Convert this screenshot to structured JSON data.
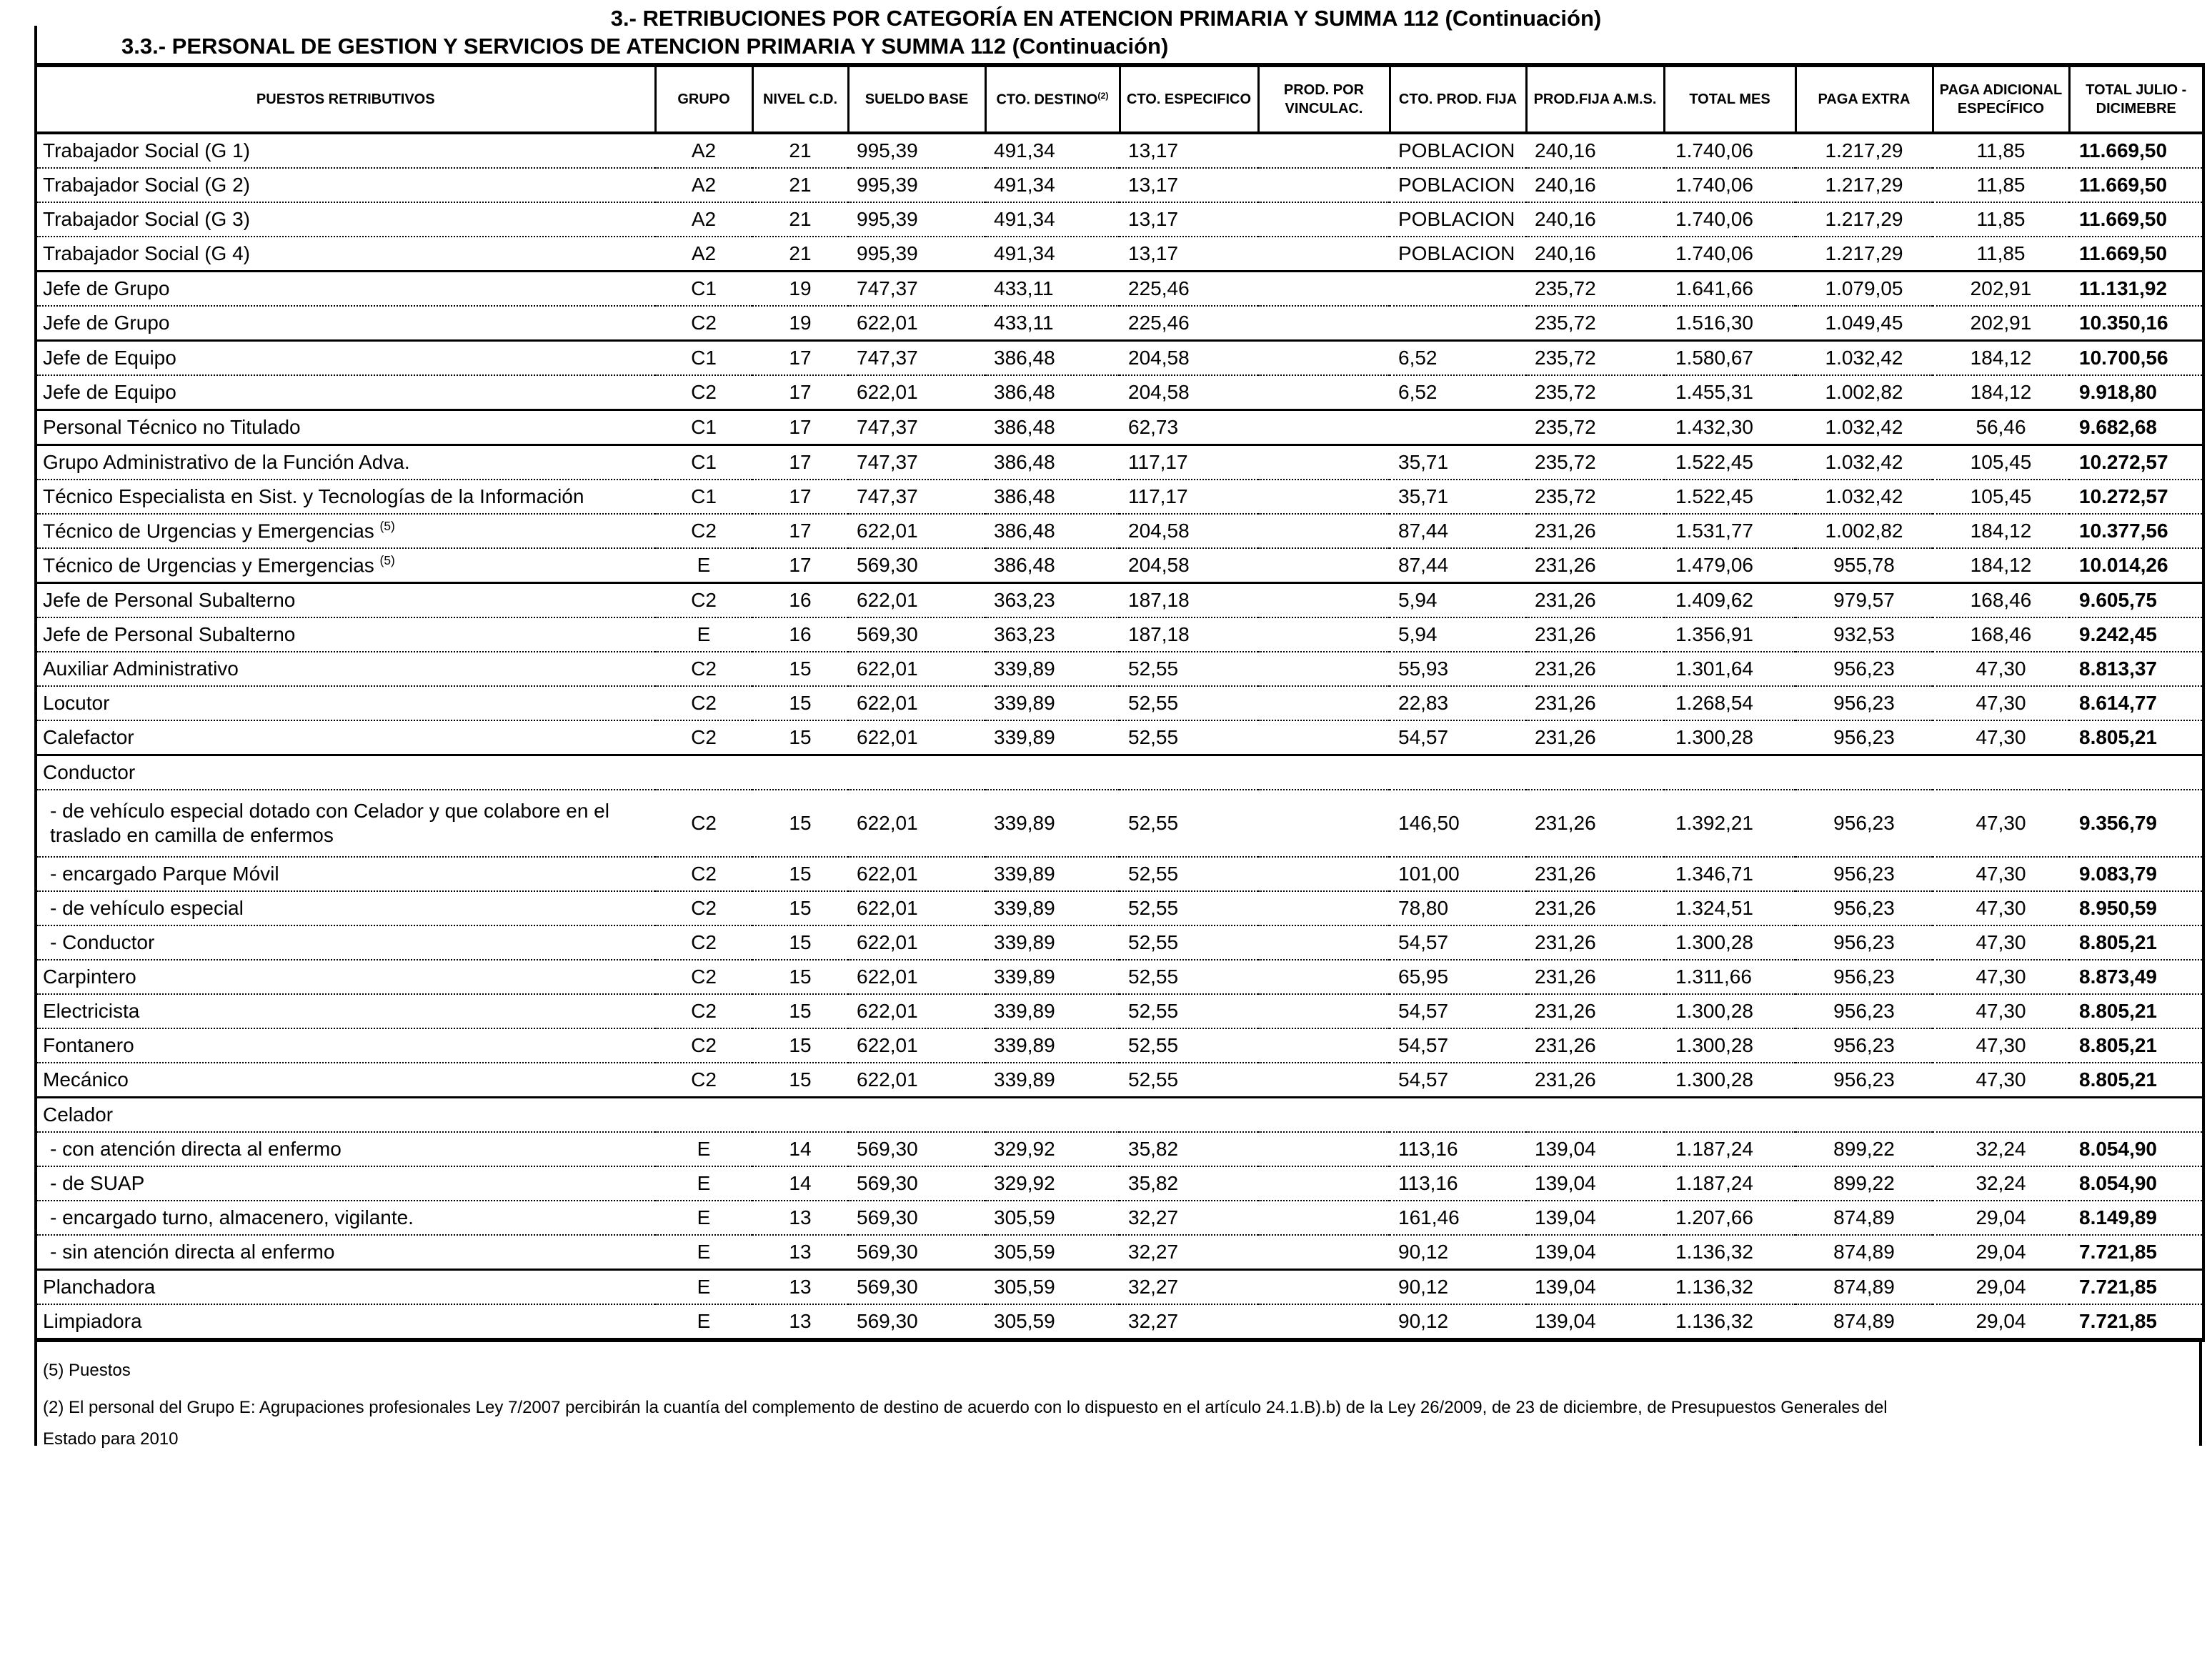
{
  "document": {
    "title": "3.-  RETRIBUCIONES POR CATEGORÍA EN ATENCION PRIMARIA Y SUMMA 112 (Continuación)",
    "subtitle": "3.3.- PERSONAL DE GESTION Y SERVICIOS DE ATENCION PRIMARIA Y SUMMA 112 (Continuación)"
  },
  "table": {
    "columns": [
      {
        "label": "PUESTOS RETRIBUTIVOS"
      },
      {
        "label": "GRUPO"
      },
      {
        "label": "NIVEL C.D."
      },
      {
        "label": "SUELDO BASE"
      },
      {
        "label": "CTO. DESTINO",
        "sup": "(2)"
      },
      {
        "label": "CTO. ESPECIFICO"
      },
      {
        "label": "PROD. POR VINCULAC."
      },
      {
        "label": "CTO. PROD. FIJA"
      },
      {
        "label": "PROD.FIJA A.M.S."
      },
      {
        "label": "TOTAL MES"
      },
      {
        "label": "PAGA  EXTRA"
      },
      {
        "label": "PAGA ADICIONAL ESPECÍFICO"
      },
      {
        "label": "TOTAL JULIO - DICIMEBRE"
      }
    ],
    "rows": [
      {
        "label": "Trabajador Social (G 1)",
        "sep": "none",
        "cells": {
          "grupo": "A2",
          "nivel": "21",
          "sueldo": "995,39",
          "destino": "491,34",
          "especifico": "13,17",
          "ctoprod": "POBLACION",
          "prodfija": "240,16",
          "totalmes": "1.740,06",
          "pagaextra": "1.217,29",
          "pagaadic": "11,85",
          "totaljulio": "11.669,50"
        }
      },
      {
        "label": "Trabajador Social  (G 2)",
        "sep": "dotted",
        "cells": {
          "grupo": "A2",
          "nivel": "21",
          "sueldo": "995,39",
          "destino": "491,34",
          "especifico": "13,17",
          "ctoprod": "POBLACION",
          "prodfija": "240,16",
          "totalmes": "1.740,06",
          "pagaextra": "1.217,29",
          "pagaadic": "11,85",
          "totaljulio": "11.669,50"
        }
      },
      {
        "label": "Trabajador Social  (G 3)",
        "sep": "dotted",
        "cells": {
          "grupo": "A2",
          "nivel": "21",
          "sueldo": "995,39",
          "destino": "491,34",
          "especifico": "13,17",
          "ctoprod": "POBLACION",
          "prodfija": "240,16",
          "totalmes": "1.740,06",
          "pagaextra": "1.217,29",
          "pagaadic": "11,85",
          "totaljulio": "11.669,50"
        }
      },
      {
        "label": "Trabajador Social  (G 4)",
        "sep": "dotted",
        "cells": {
          "grupo": "A2",
          "nivel": "21",
          "sueldo": "995,39",
          "destino": "491,34",
          "especifico": "13,17",
          "ctoprod": "POBLACION",
          "prodfija": "240,16",
          "totalmes": "1.740,06",
          "pagaextra": "1.217,29",
          "pagaadic": "11,85",
          "totaljulio": "11.669,50"
        }
      },
      {
        "label": "Jefe de Grupo",
        "sep": "solid",
        "cells": {
          "grupo": "C1",
          "nivel": "19",
          "sueldo": "747,37",
          "destino": "433,11",
          "especifico": "225,46",
          "prodfija": "235,72",
          "totalmes": "1.641,66",
          "pagaextra": "1.079,05",
          "pagaadic": "202,91",
          "totaljulio": "11.131,92"
        }
      },
      {
        "label": "Jefe de Grupo",
        "sep": "dotted",
        "cells": {
          "grupo": "C2",
          "nivel": "19",
          "sueldo": "622,01",
          "destino": "433,11",
          "especifico": "225,46",
          "prodfija": "235,72",
          "totalmes": "1.516,30",
          "pagaextra": "1.049,45",
          "pagaadic": "202,91",
          "totaljulio": "10.350,16"
        }
      },
      {
        "label": "Jefe de Equipo",
        "sep": "solid",
        "cells": {
          "grupo": "C1",
          "nivel": "17",
          "sueldo": "747,37",
          "destino": "386,48",
          "especifico": "204,58",
          "ctoprod": "6,52",
          "prodfija": "235,72",
          "totalmes": "1.580,67",
          "pagaextra": "1.032,42",
          "pagaadic": "184,12",
          "totaljulio": "10.700,56"
        }
      },
      {
        "label": "Jefe de Equipo",
        "sep": "dotted",
        "cells": {
          "grupo": "C2",
          "nivel": "17",
          "sueldo": "622,01",
          "destino": "386,48",
          "especifico": "204,58",
          "ctoprod": "6,52",
          "prodfija": "235,72",
          "totalmes": "1.455,31",
          "pagaextra": "1.002,82",
          "pagaadic": "184,12",
          "totaljulio": "9.918,80"
        }
      },
      {
        "label": "Personal Técnico no Titulado",
        "sep": "solid",
        "cells": {
          "grupo": "C1",
          "nivel": "17",
          "sueldo": "747,37",
          "destino": "386,48",
          "especifico": "62,73",
          "prodfija": "235,72",
          "totalmes": "1.432,30",
          "pagaextra": "1.032,42",
          "pagaadic": "56,46",
          "totaljulio": "9.682,68"
        }
      },
      {
        "label": "Grupo Administrativo de la Función Adva.",
        "sep": "solid",
        "cells": {
          "grupo": "C1",
          "nivel": "17",
          "sueldo": "747,37",
          "destino": "386,48",
          "especifico": "117,17",
          "ctoprod": "35,71",
          "prodfija": "235,72",
          "totalmes": "1.522,45",
          "pagaextra": "1.032,42",
          "pagaadic": "105,45",
          "totaljulio": "10.272,57"
        }
      },
      {
        "label": "Técnico Especialista en Sist. y Tecnologías de la Información",
        "sep": "dotted",
        "cells": {
          "grupo": "C1",
          "nivel": "17",
          "sueldo": "747,37",
          "destino": "386,48",
          "especifico": "117,17",
          "ctoprod": "35,71",
          "prodfija": "235,72",
          "totalmes": "1.522,45",
          "pagaextra": "1.032,42",
          "pagaadic": "105,45",
          "totaljulio": "10.272,57"
        }
      },
      {
        "label": "Técnico de Urgencias y Emergencias ",
        "sup": "(5)",
        "sep": "dotted",
        "cells": {
          "grupo": "C2",
          "nivel": "17",
          "sueldo": "622,01",
          "destino": "386,48",
          "especifico": "204,58",
          "ctoprod": "87,44",
          "prodfija": "231,26",
          "totalmes": "1.531,77",
          "pagaextra": "1.002,82",
          "pagaadic": "184,12",
          "totaljulio": "10.377,56"
        }
      },
      {
        "label": "Técnico de Urgencias y Emergencias ",
        "sup": "(5)",
        "sep": "dotted",
        "cells": {
          "grupo": "E",
          "nivel": "17",
          "sueldo": "569,30",
          "destino": "386,48",
          "especifico": "204,58",
          "ctoprod": "87,44",
          "prodfija": "231,26",
          "totalmes": "1.479,06",
          "pagaextra": "955,78",
          "pagaadic": "184,12",
          "totaljulio": "10.014,26"
        }
      },
      {
        "label": "Jefe de Personal Subalterno",
        "sep": "solid",
        "cells": {
          "grupo": "C2",
          "nivel": "16",
          "sueldo": "622,01",
          "destino": "363,23",
          "especifico": "187,18",
          "ctoprod": "5,94",
          "prodfija": "231,26",
          "totalmes": "1.409,62",
          "pagaextra": "979,57",
          "pagaadic": "168,46",
          "totaljulio": "9.605,75"
        }
      },
      {
        "label": "Jefe de Personal Subalterno",
        "sep": "dotted",
        "cells": {
          "grupo": "E",
          "nivel": "16",
          "sueldo": "569,30",
          "destino": "363,23",
          "especifico": "187,18",
          "ctoprod": "5,94",
          "prodfija": "231,26",
          "totalmes": "1.356,91",
          "pagaextra": "932,53",
          "pagaadic": "168,46",
          "totaljulio": "9.242,45"
        }
      },
      {
        "label": "Auxiliar Administrativo",
        "sep": "dotted",
        "cells": {
          "grupo": "C2",
          "nivel": "15",
          "sueldo": "622,01",
          "destino": "339,89",
          "especifico": "52,55",
          "ctoprod": "55,93",
          "prodfija": "231,26",
          "totalmes": "1.301,64",
          "pagaextra": "956,23",
          "pagaadic": "47,30",
          "totaljulio": "8.813,37"
        }
      },
      {
        "label": "Locutor",
        "sep": "dotted",
        "cells": {
          "grupo": "C2",
          "nivel": "15",
          "sueldo": "622,01",
          "destino": "339,89",
          "especifico": "52,55",
          "ctoprod": "22,83",
          "prodfija": "231,26",
          "totalmes": "1.268,54",
          "pagaextra": "956,23",
          "pagaadic": "47,30",
          "totaljulio": "8.614,77"
        }
      },
      {
        "label": "Calefactor",
        "sep": "dotted",
        "cells": {
          "grupo": "C2",
          "nivel": "15",
          "sueldo": "622,01",
          "destino": "339,89",
          "especifico": "52,55",
          "ctoprod": "54,57",
          "prodfija": "231,26",
          "totalmes": "1.300,28",
          "pagaextra": "956,23",
          "pagaadic": "47,30",
          "totaljulio": "8.805,21"
        }
      },
      {
        "label": "Conductor",
        "sep": "solid",
        "group": true,
        "cells": {}
      },
      {
        "label": "- de vehículo especial dotado con Celador y que  colabore en el traslado en camilla de enfermos",
        "sep": "dotted",
        "indent": true,
        "tall": true,
        "cells": {
          "grupo": "C2",
          "nivel": "15",
          "sueldo": "622,01",
          "destino": "339,89",
          "especifico": "52,55",
          "ctoprod": "146,50",
          "prodfija": "231,26",
          "totalmes": "1.392,21",
          "pagaextra": "956,23",
          "pagaadic": "47,30",
          "totaljulio": "9.356,79"
        }
      },
      {
        "label": "- encargado Parque Móvil",
        "sep": "dotted",
        "indent": true,
        "cells": {
          "grupo": "C2",
          "nivel": "15",
          "sueldo": "622,01",
          "destino": "339,89",
          "especifico": "52,55",
          "ctoprod": "101,00",
          "prodfija": "231,26",
          "totalmes": "1.346,71",
          "pagaextra": "956,23",
          "pagaadic": "47,30",
          "totaljulio": "9.083,79"
        }
      },
      {
        "label": "- de vehículo especial",
        "sep": "dotted",
        "indent": true,
        "cells": {
          "grupo": "C2",
          "nivel": "15",
          "sueldo": "622,01",
          "destino": "339,89",
          "especifico": "52,55",
          "ctoprod": "78,80",
          "prodfija": "231,26",
          "totalmes": "1.324,51",
          "pagaextra": "956,23",
          "pagaadic": "47,30",
          "totaljulio": "8.950,59"
        }
      },
      {
        "label": "- Conductor",
        "sep": "dotted",
        "indent": true,
        "cells": {
          "grupo": "C2",
          "nivel": "15",
          "sueldo": "622,01",
          "destino": "339,89",
          "especifico": "52,55",
          "ctoprod": "54,57",
          "prodfija": "231,26",
          "totalmes": "1.300,28",
          "pagaextra": "956,23",
          "pagaadic": "47,30",
          "totaljulio": "8.805,21"
        }
      },
      {
        "label": "Carpintero",
        "sep": "dotted",
        "cells": {
          "grupo": "C2",
          "nivel": "15",
          "sueldo": "622,01",
          "destino": "339,89",
          "especifico": "52,55",
          "ctoprod": "65,95",
          "prodfija": "231,26",
          "totalmes": "1.311,66",
          "pagaextra": "956,23",
          "pagaadic": "47,30",
          "totaljulio": "8.873,49"
        }
      },
      {
        "label": "Electricista",
        "sep": "dotted",
        "cells": {
          "grupo": "C2",
          "nivel": "15",
          "sueldo": "622,01",
          "destino": "339,89",
          "especifico": "52,55",
          "ctoprod": "54,57",
          "prodfija": "231,26",
          "totalmes": "1.300,28",
          "pagaextra": "956,23",
          "pagaadic": "47,30",
          "totaljulio": "8.805,21"
        }
      },
      {
        "label": "Fontanero",
        "sep": "dotted",
        "cells": {
          "grupo": "C2",
          "nivel": "15",
          "sueldo": "622,01",
          "destino": "339,89",
          "especifico": "52,55",
          "ctoprod": "54,57",
          "prodfija": "231,26",
          "totalmes": "1.300,28",
          "pagaextra": "956,23",
          "pagaadic": "47,30",
          "totaljulio": "8.805,21"
        }
      },
      {
        "label": "Mecánico",
        "sep": "dotted",
        "cells": {
          "grupo": "C2",
          "nivel": "15",
          "sueldo": "622,01",
          "destino": "339,89",
          "especifico": "52,55",
          "ctoprod": "54,57",
          "prodfija": "231,26",
          "totalmes": "1.300,28",
          "pagaextra": "956,23",
          "pagaadic": "47,30",
          "totaljulio": "8.805,21"
        }
      },
      {
        "label": "Celador",
        "sep": "solid",
        "group": true,
        "cells": {}
      },
      {
        "label": "- con atención directa al enfermo",
        "sep": "dotted",
        "indent": true,
        "cells": {
          "grupo": "E",
          "nivel": "14",
          "sueldo": "569,30",
          "destino": "329,92",
          "especifico": "35,82",
          "ctoprod": "113,16",
          "prodfija": "139,04",
          "totalmes": "1.187,24",
          "pagaextra": "899,22",
          "pagaadic": "32,24",
          "totaljulio": "8.054,90"
        }
      },
      {
        "label": "- de SUAP",
        "sep": "dotted",
        "indent": true,
        "cells": {
          "grupo": "E",
          "nivel": "14",
          "sueldo": "569,30",
          "destino": "329,92",
          "especifico": "35,82",
          "ctoprod": "113,16",
          "prodfija": "139,04",
          "totalmes": "1.187,24",
          "pagaextra": "899,22",
          "pagaadic": "32,24",
          "totaljulio": "8.054,90"
        }
      },
      {
        "label": "- encargado turno, almacenero, vigilante.",
        "sep": "dotted",
        "indent": true,
        "cells": {
          "grupo": "E",
          "nivel": "13",
          "sueldo": "569,30",
          "destino": "305,59",
          "especifico": "32,27",
          "ctoprod": "161,46",
          "prodfija": "139,04",
          "totalmes": "1.207,66",
          "pagaextra": "874,89",
          "pagaadic": "29,04",
          "totaljulio": "8.149,89"
        }
      },
      {
        "label": "- sin atención directa al enfermo",
        "sep": "dotted",
        "indent": true,
        "cells": {
          "grupo": "E",
          "nivel": "13",
          "sueldo": "569,30",
          "destino": "305,59",
          "especifico": "32,27",
          "ctoprod": "90,12",
          "prodfija": "139,04",
          "totalmes": "1.136,32",
          "pagaextra": "874,89",
          "pagaadic": "29,04",
          "totaljulio": "7.721,85"
        }
      },
      {
        "label": "Planchadora",
        "sep": "solid",
        "cells": {
          "grupo": "E",
          "nivel": "13",
          "sueldo": "569,30",
          "destino": "305,59",
          "especifico": "32,27",
          "ctoprod": "90,12",
          "prodfija": "139,04",
          "totalmes": "1.136,32",
          "pagaextra": "874,89",
          "pagaadic": "29,04",
          "totaljulio": "7.721,85"
        }
      },
      {
        "label": "Limpiadora",
        "sep": "dotted",
        "cells": {
          "grupo": "E",
          "nivel": "13",
          "sueldo": "569,30",
          "destino": "305,59",
          "especifico": "32,27",
          "ctoprod": "90,12",
          "prodfija": "139,04",
          "totalmes": "1.136,32",
          "pagaextra": "874,89",
          "pagaadic": "29,04",
          "totaljulio": "7.721,85"
        }
      }
    ]
  },
  "footnotes": {
    "note5": "(5) Puestos",
    "note2_line1": "(2) El personal del Grupo E: Agrupaciones profesionales Ley 7/2007 percibirán la cuantía del complemento de destino de   acuerdo con lo dispuesto en el artículo 24.1.B).b) de la Ley 26/2009, de 23 de diciembre, de Presupuestos Generales del",
    "note2_line2": "Estado para 2010"
  }
}
